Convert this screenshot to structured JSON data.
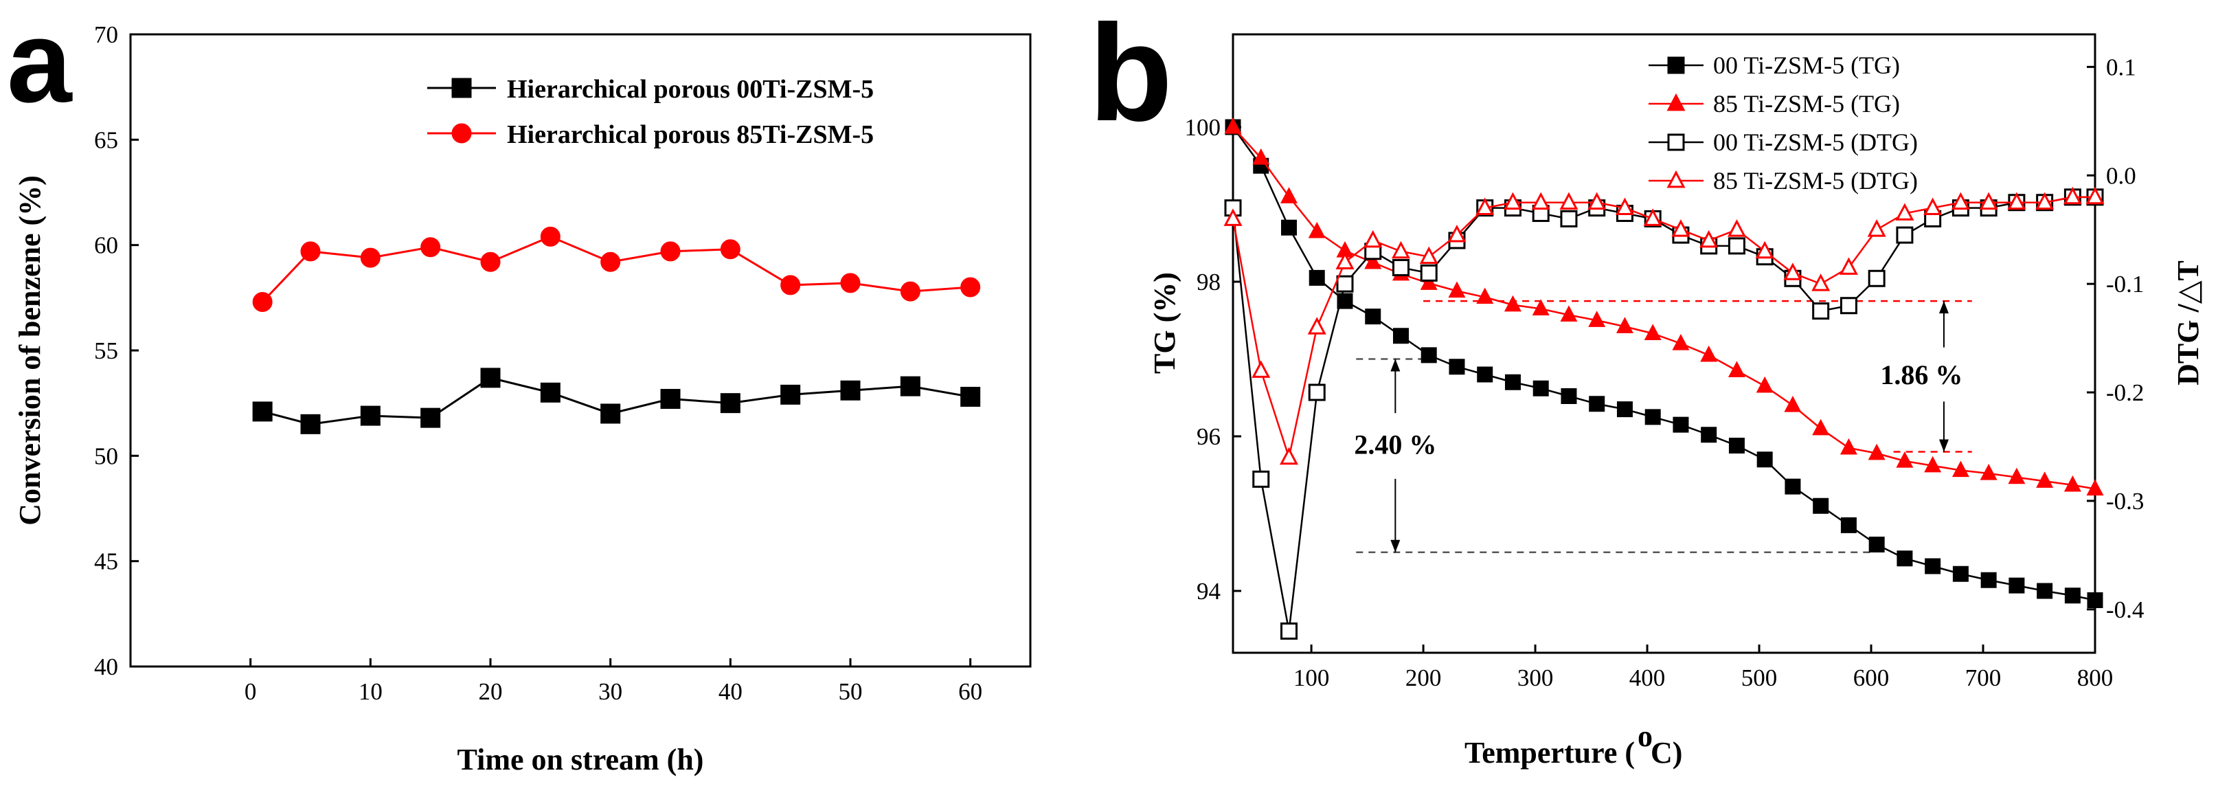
{
  "chart_data": [
    {
      "type": "line",
      "panel_label": "a",
      "xlabel": "Time on stream (h)",
      "ylabel": "Conversion of benzene (%)",
      "xlim": [
        -10,
        65
      ],
      "ylim": [
        40,
        70
      ],
      "xticks": [
        0,
        10,
        20,
        30,
        40,
        50,
        60
      ],
      "yticks": [
        40,
        45,
        50,
        55,
        60,
        65,
        70
      ],
      "legend_position": "top-right",
      "series": [
        {
          "name": "Hierarchical porous 00Ti-ZSM-5",
          "color": "#000000",
          "marker": "square",
          "x": [
            1,
            5,
            10,
            15,
            20,
            25,
            30,
            35,
            40,
            45,
            50,
            55,
            60
          ],
          "y": [
            52.1,
            51.5,
            51.9,
            51.8,
            53.7,
            53.0,
            52.0,
            52.7,
            52.5,
            52.9,
            53.1,
            53.3,
            52.8
          ]
        },
        {
          "name": "Hierarchical porous 85Ti-ZSM-5",
          "color": "#ff0000",
          "marker": "circle",
          "x": [
            1,
            5,
            10,
            15,
            20,
            25,
            30,
            35,
            40,
            45,
            50,
            55,
            60
          ],
          "y": [
            57.3,
            59.7,
            59.4,
            59.9,
            59.2,
            60.4,
            59.2,
            59.7,
            59.8,
            58.1,
            58.2,
            57.8,
            58.0
          ]
        }
      ]
    },
    {
      "type": "line",
      "panel_label": "b",
      "xlabel": "Temperture (",
      "xlabel_sup": "o",
      "xlabel_end": "C)",
      "ylabel_left": "TG (%)",
      "ylabel_right": "DTG /△T",
      "xlim": [
        30,
        800
      ],
      "ylim_left": [
        93.2,
        101.2
      ],
      "ylim_right": [
        -0.44,
        0.13
      ],
      "xticks": [
        100,
        200,
        300,
        400,
        500,
        600,
        700,
        800
      ],
      "yticks_left": [
        94,
        96,
        98,
        100
      ],
      "yticks_right": [
        -0.4,
        -0.3,
        -0.2,
        -0.1,
        0.0,
        0.1
      ],
      "yticks_right_labels": [
        "-0.4",
        "-0.3",
        "-0.2",
        "-0.1",
        "0.0",
        "0.1"
      ],
      "legend_position": "top-right",
      "series": [
        {
          "name": "00 Ti-ZSM-5 (TG)",
          "axis": "left",
          "color": "#000000",
          "marker": "square",
          "filled": true,
          "x": [
            30,
            55,
            80,
            105,
            130,
            155,
            180,
            205,
            230,
            255,
            280,
            305,
            330,
            355,
            380,
            405,
            430,
            455,
            480,
            505,
            530,
            555,
            580,
            605,
            630,
            655,
            680,
            705,
            730,
            755,
            780,
            800
          ],
          "y": [
            100.0,
            99.5,
            98.7,
            98.05,
            97.75,
            97.55,
            97.3,
            97.05,
            96.9,
            96.8,
            96.7,
            96.62,
            96.52,
            96.42,
            96.35,
            96.25,
            96.15,
            96.02,
            95.88,
            95.7,
            95.35,
            95.1,
            94.85,
            94.6,
            94.42,
            94.32,
            94.22,
            94.14,
            94.07,
            94.0,
            93.94,
            93.88
          ]
        },
        {
          "name": "85 Ti-ZSM-5 (TG)",
          "axis": "left",
          "color": "#ff0000",
          "marker": "triangle",
          "filled": true,
          "x": [
            30,
            55,
            80,
            105,
            130,
            155,
            180,
            205,
            230,
            255,
            280,
            305,
            330,
            355,
            380,
            405,
            430,
            455,
            480,
            505,
            530,
            555,
            580,
            605,
            630,
            655,
            680,
            705,
            730,
            755,
            780,
            800
          ],
          "y": [
            100.0,
            99.6,
            99.1,
            98.65,
            98.4,
            98.25,
            98.1,
            97.98,
            97.88,
            97.8,
            97.7,
            97.65,
            97.57,
            97.5,
            97.42,
            97.33,
            97.2,
            97.05,
            96.85,
            96.65,
            96.4,
            96.1,
            95.85,
            95.78,
            95.68,
            95.62,
            95.56,
            95.52,
            95.47,
            95.42,
            95.37,
            95.32
          ]
        },
        {
          "name": "00 Ti-ZSM-5 (DTG)",
          "axis": "right",
          "color": "#000000",
          "marker": "square",
          "filled": false,
          "x": [
            30,
            55,
            80,
            105,
            130,
            155,
            180,
            205,
            230,
            255,
            280,
            305,
            330,
            355,
            380,
            405,
            430,
            455,
            480,
            505,
            530,
            555,
            580,
            605,
            630,
            655,
            680,
            705,
            730,
            755,
            780,
            800
          ],
          "y": [
            -0.03,
            -0.28,
            -0.42,
            -0.2,
            -0.1,
            -0.07,
            -0.085,
            -0.09,
            -0.06,
            -0.03,
            -0.03,
            -0.035,
            -0.04,
            -0.03,
            -0.035,
            -0.04,
            -0.055,
            -0.065,
            -0.065,
            -0.075,
            -0.095,
            -0.125,
            -0.12,
            -0.095,
            -0.055,
            -0.04,
            -0.03,
            -0.03,
            -0.025,
            -0.025,
            -0.02,
            -0.02
          ]
        },
        {
          "name": "85 Ti-ZSM-5 (DTG)",
          "axis": "right",
          "color": "#ff0000",
          "marker": "triangle",
          "filled": false,
          "x": [
            30,
            55,
            80,
            105,
            130,
            155,
            180,
            205,
            230,
            255,
            280,
            305,
            330,
            355,
            380,
            405,
            430,
            455,
            480,
            505,
            530,
            555,
            580,
            605,
            630,
            655,
            680,
            705,
            730,
            755,
            780,
            800
          ],
          "y": [
            -0.04,
            -0.18,
            -0.26,
            -0.14,
            -0.08,
            -0.06,
            -0.07,
            -0.075,
            -0.055,
            -0.03,
            -0.025,
            -0.025,
            -0.025,
            -0.025,
            -0.03,
            -0.04,
            -0.05,
            -0.06,
            -0.05,
            -0.07,
            -0.09,
            -0.1,
            -0.085,
            -0.05,
            -0.035,
            -0.03,
            -0.025,
            -0.025,
            -0.025,
            -0.025,
            -0.02,
            -0.02
          ]
        }
      ],
      "annotations": [
        {
          "text": "2.40 %",
          "x": 175,
          "y": 95.9
        },
        {
          "text": "1.86 %",
          "x": 645,
          "y": 96.8
        }
      ]
    }
  ]
}
